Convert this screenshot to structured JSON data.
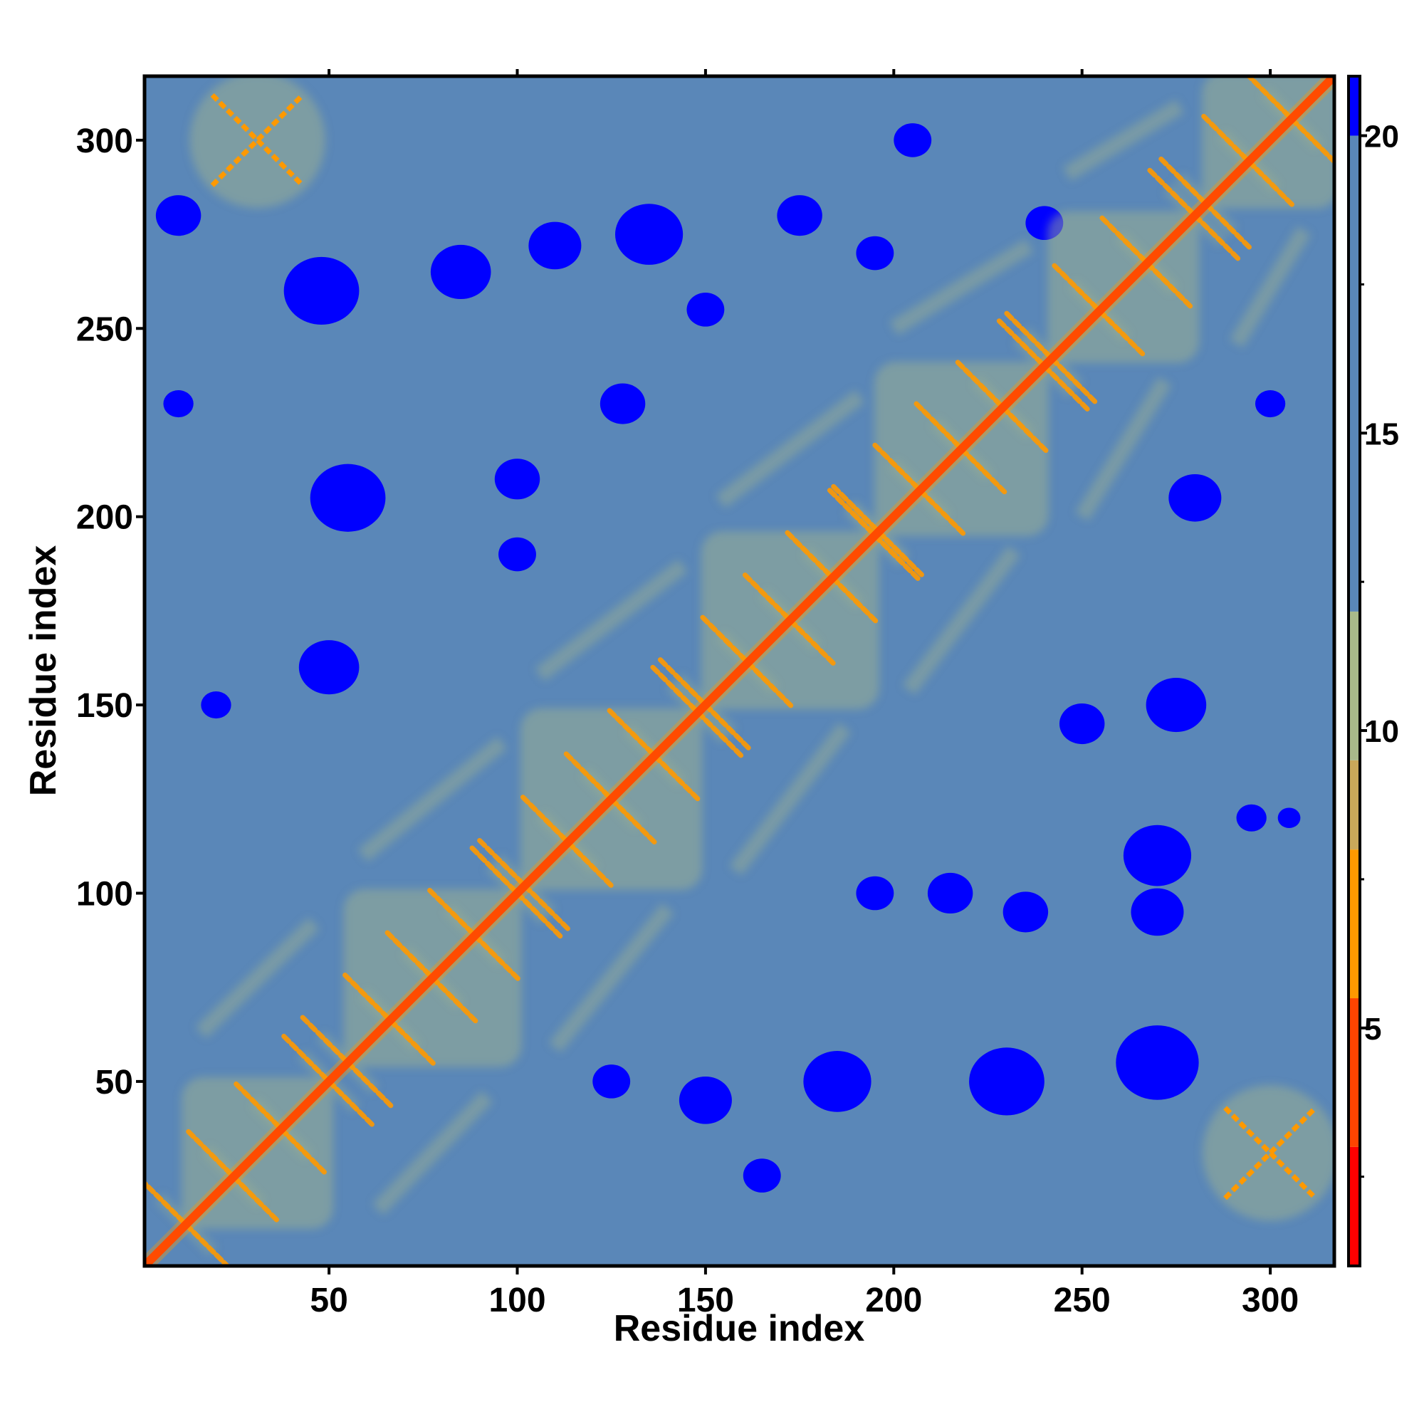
{
  "chart_data": {
    "type": "heatmap",
    "title": "",
    "xlabel": "Residue index",
    "ylabel": "Residue index",
    "n_residues": 317,
    "xlim": [
      1,
      317
    ],
    "ylim": [
      1,
      317
    ],
    "x_ticks": [
      50,
      100,
      150,
      200,
      250,
      300
    ],
    "y_ticks": [
      50,
      100,
      150,
      200,
      250,
      300
    ],
    "colorbar": {
      "ticks": [
        5,
        10,
        15,
        20
      ],
      "range": [
        1,
        21
      ],
      "bands": [
        {
          "from": 1,
          "to": 3,
          "color": "#ff0000"
        },
        {
          "from": 3,
          "to": 5.5,
          "color": "#ff4400"
        },
        {
          "from": 5.5,
          "to": 8,
          "color": "#ff9900"
        },
        {
          "from": 8,
          "to": 9.5,
          "color": "#c9a85a"
        },
        {
          "from": 9.5,
          "to": 12,
          "color": "#a8b98a"
        },
        {
          "from": 12,
          "to": 20,
          "color": "#5a87b8"
        },
        {
          "from": 20,
          "to": 21,
          "color": "#0000ff"
        }
      ]
    },
    "colors": {
      "background": "#5a87b8",
      "far": "#0000ff",
      "near": "#a8b98a",
      "contact": "#ff9900",
      "diagonal": "#ff2200"
    },
    "helix_blocks": [
      {
        "start": 12,
        "end": 50
      },
      {
        "start": 55,
        "end": 100
      },
      {
        "start": 102,
        "end": 148
      },
      {
        "start": 150,
        "end": 195
      },
      {
        "start": 196,
        "end": 240
      },
      {
        "start": 242,
        "end": 280
      },
      {
        "start": 283,
        "end": 317
      }
    ],
    "far_blobs": [
      {
        "x": 48,
        "y": 260,
        "r": 10
      },
      {
        "x": 85,
        "y": 265,
        "r": 8
      },
      {
        "x": 110,
        "y": 272,
        "r": 7
      },
      {
        "x": 135,
        "y": 275,
        "r": 9
      },
      {
        "x": 55,
        "y": 205,
        "r": 10
      },
      {
        "x": 100,
        "y": 210,
        "r": 6
      },
      {
        "x": 50,
        "y": 160,
        "r": 8
      },
      {
        "x": 100,
        "y": 190,
        "r": 5
      },
      {
        "x": 128,
        "y": 230,
        "r": 6
      },
      {
        "x": 150,
        "y": 255,
        "r": 5
      },
      {
        "x": 175,
        "y": 280,
        "r": 6
      },
      {
        "x": 195,
        "y": 270,
        "r": 5
      },
      {
        "x": 205,
        "y": 300,
        "r": 5
      },
      {
        "x": 240,
        "y": 278,
        "r": 5
      },
      {
        "x": 185,
        "y": 50,
        "r": 9
      },
      {
        "x": 230,
        "y": 50,
        "r": 10
      },
      {
        "x": 270,
        "y": 55,
        "r": 11
      },
      {
        "x": 150,
        "y": 45,
        "r": 7
      },
      {
        "x": 270,
        "y": 110,
        "r": 9
      },
      {
        "x": 275,
        "y": 150,
        "r": 8
      },
      {
        "x": 250,
        "y": 145,
        "r": 6
      },
      {
        "x": 280,
        "y": 205,
        "r": 7
      },
      {
        "x": 270,
        "y": 95,
        "r": 7
      },
      {
        "x": 215,
        "y": 100,
        "r": 6
      },
      {
        "x": 235,
        "y": 95,
        "r": 6
      },
      {
        "x": 195,
        "y": 100,
        "r": 5
      },
      {
        "x": 125,
        "y": 50,
        "r": 5
      },
      {
        "x": 295,
        "y": 120,
        "r": 4
      },
      {
        "x": 10,
        "y": 280,
        "r": 6
      },
      {
        "x": 10,
        "y": 230,
        "r": 4
      },
      {
        "x": 300,
        "y": 230,
        "r": 4
      },
      {
        "x": 20,
        "y": 150,
        "r": 4
      },
      {
        "x": 165,
        "y": 25,
        "r": 5
      },
      {
        "x": 305,
        "y": 120,
        "r": 3
      }
    ]
  }
}
